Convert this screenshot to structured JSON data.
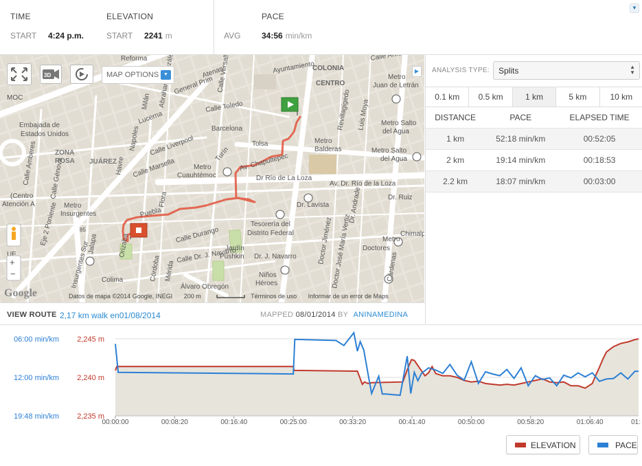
{
  "stats": {
    "time": {
      "heading": "TIME",
      "label": "START",
      "value": "4:24 p.m."
    },
    "elevation": {
      "heading": "ELEVATION",
      "label": "START",
      "value": "2241",
      "unit": "m"
    },
    "pace": {
      "heading": "PACE",
      "label": "AVG",
      "value": "34:56",
      "unit": "min/km"
    }
  },
  "map": {
    "map_options_label": "MAP OPTIONS",
    "footer": {
      "data_label": "Datos de mapa ©2014 Google, INEGI",
      "scale": "200 m",
      "terms": "Términos de uso",
      "report": "Informar de un error de Maps"
    },
    "logo": "Google",
    "streets": [
      "Reforma",
      "Atenas",
      "Calle Versalles",
      "Milán",
      "Lucerna",
      "Abraham González",
      "General Prim",
      "Calle Artículo 123",
      "Ayuntamiento",
      "COLONIA",
      "CENTRO",
      "Metro",
      "Metro Salto",
      "Juan de Letrán",
      "Revillagigedo",
      "Luis Moya",
      "Metro Salto del Agua",
      "Metro Salto del Agua",
      "Metro Balderas",
      "Calle Toledo",
      "Barcelona",
      "Tolsa",
      "Embajada de",
      "Estados Unidos",
      "ZONA",
      "ROSA",
      "JUÁREZ",
      "Calle Liverpool",
      "Calle Marsella",
      "Calle Amberes",
      "Calle Génova",
      "Napoles",
      "Calle Berlin",
      "Av. Chapultepec",
      "Dr Río de La Loza",
      "Av. Dr. Río de la Loza",
      "Metro Cuauhtémoc",
      "Turín",
      "Dr. Lavista",
      "Dr. Ruiz",
      "Tesorería del",
      "Distrito Federal",
      "Calle Durango",
      "Puebla",
      "Flora",
      "Metro Insurgentes",
      "(Centro",
      "Atención A",
      "Eje 2 Poniente",
      "Jalapa",
      "Orizaba",
      "Jardín",
      "Pushkin",
      "Calle Dr. J. Navarro",
      "Dr. J. Navarro",
      "Niños",
      "Héroes",
      "Metro Doctores",
      "Chimalp",
      "Mérida",
      "Córdoba",
      "Av. Cuauhtémoc",
      "Colima",
      "Álvaro Obregón",
      "Metro",
      "Cárdenas",
      "Doctor Jiménez",
      "Doctor José María Vertiz",
      "Dr. Andrade",
      "Dr. Lucio",
      "Manzanillo",
      "Insurgentes Sur",
      "Roma",
      "Salamanca",
      "Calle Varsovia",
      "Havre",
      "MOC",
      "UE",
      "IBE",
      "85"
    ]
  },
  "analysis": {
    "type_label": "ANALYSIS TYPE:",
    "type_value": "Splits",
    "tabs": [
      "0.1 km",
      "0.5 km",
      "1 km",
      "5 km",
      "10 km"
    ],
    "active_tab": "1 km",
    "columns": [
      "DISTANCE",
      "PACE",
      "ELAPSED TIME"
    ],
    "rows": [
      [
        "1 km",
        "52:18 min/km",
        "00:52:05"
      ],
      [
        "2 km",
        "19:14 min/km",
        "00:18:53"
      ],
      [
        "2.2 km",
        "18:07 min/km",
        "00:03:00"
      ]
    ]
  },
  "route": {
    "label": "VIEW ROUTE",
    "link": "2,17 km walk en01/08/2014",
    "mapped_label": "MAPPED",
    "mapped_date": "08/01/2014",
    "by_label": "BY",
    "author": "ANINAMEDINA"
  },
  "colors": {
    "elevation": "#c0392b",
    "pace": "#2b7fd4",
    "link": "#2a8ad0"
  },
  "chart_data": {
    "type": "line",
    "x_ticks": [
      "00:00:00",
      "00:08:20",
      "00:16:40",
      "00:25:00",
      "00:33:20",
      "00:41:40",
      "00:50:00",
      "00:58:20",
      "01:06:40",
      "01:"
    ],
    "left_axis": {
      "label_ticks": [
        "06:00 min/km",
        "12:00 min/km",
        "19:48 min/km"
      ]
    },
    "right_axis": {
      "label_ticks": [
        "2,245 m",
        "2,240 m",
        "2,235 m"
      ]
    },
    "x_range_minutes": [
      0,
      73.5
    ],
    "elevation_range_m": [
      2235,
      2245
    ],
    "pace_range_minutes": [
      6,
      19.8
    ],
    "series": [
      {
        "name": "ELEVATION",
        "x_minutes": [
          0,
          0.2,
          25,
          25.1,
          34,
          34.7,
          35,
          35.5,
          36,
          40.4,
          41,
          41.6,
          42,
          43.5,
          44,
          44.5,
          45,
          46,
          47,
          48,
          49,
          50,
          51,
          52,
          53,
          54,
          55,
          56,
          57,
          58,
          59,
          60,
          61,
          62,
          63,
          64,
          65,
          66,
          67,
          67.5,
          68,
          68.5,
          69,
          70,
          71,
          72,
          73,
          73.5
        ],
        "y_m": [
          2240.9,
          2241.4,
          2241.4,
          2240.9,
          2240.8,
          2239.1,
          2239.4,
          2239.2,
          2239.3,
          2239.4,
          2241.0,
          2242.3,
          2242.2,
          2240.2,
          2240.6,
          2241.4,
          2240.5,
          2240.2,
          2240.2,
          2240.0,
          2239.6,
          2239.4,
          2239.5,
          2239.2,
          2239.1,
          2239.0,
          2239.1,
          2239.0,
          2239.2,
          2239.4,
          2239.6,
          2239.8,
          2239.4,
          2239.3,
          2239.4,
          2238.9,
          2238.9,
          2238.6,
          2239.2,
          2240.3,
          2241.3,
          2242.4,
          2243.3,
          2244.0,
          2244.4,
          2244.6,
          2244.9,
          2245.0
        ]
      },
      {
        "name": "PACE",
        "x_minutes": [
          0,
          0.4,
          25,
          25.2,
          31,
          32.1,
          33.5,
          34,
          34.4,
          34.9,
          35.5,
          36,
          37,
          37.5,
          38,
          39,
          40,
          40.4,
          41,
          41.5,
          42,
          42.5,
          43,
          44,
          45,
          46,
          47,
          48,
          49,
          50,
          51,
          52,
          53,
          54,
          55,
          56,
          57,
          58,
          59,
          60,
          61,
          62,
          63,
          64,
          65,
          66,
          67,
          68,
          69,
          70,
          71,
          72,
          73,
          73.5
        ],
        "x_note": "",
        "y_minutes": [
          6.9,
          12.0,
          12.3,
          6.1,
          6.3,
          7.2,
          4.9,
          8.2,
          6.5,
          8.0,
          12.3,
          15.8,
          12.7,
          15.9,
          15.9,
          16.0,
          16.1,
          13.4,
          9.1,
          15.8,
          12.0,
          13.5,
          12.2,
          11.2,
          11.6,
          12.2,
          10.6,
          12.5,
          13.4,
          10.1,
          14.0,
          11.9,
          12.3,
          12.6,
          11.5,
          13.1,
          11.2,
          14.4,
          12.6,
          13.3,
          13.0,
          14.4,
          12.5,
          13.0,
          12.1,
          12.8,
          12.1,
          13.6,
          13.2,
          13.1,
          12.1,
          13.2,
          11.8,
          11.8
        ]
      }
    ],
    "legend": [
      "ELEVATION",
      "PACE"
    ]
  }
}
